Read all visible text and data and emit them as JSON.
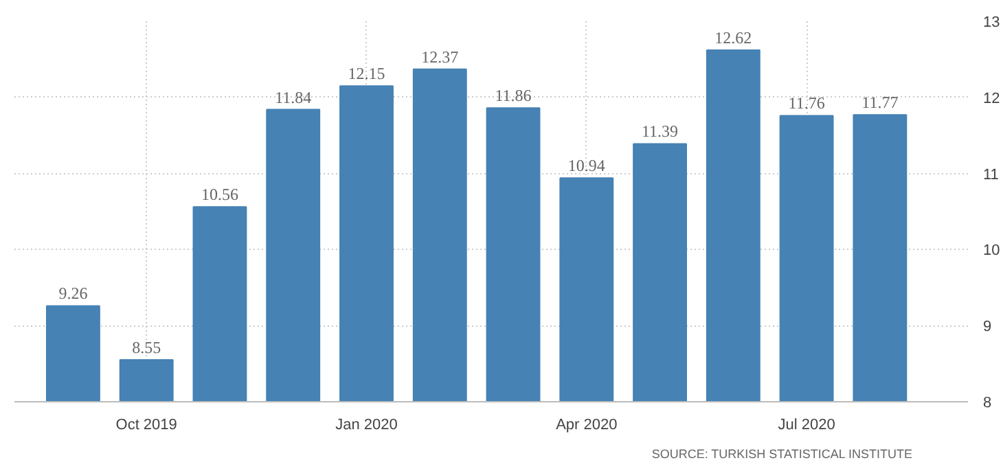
{
  "chart_data": {
    "type": "bar",
    "categories": [
      null,
      "Oct 2019",
      null,
      null,
      "Jan 2020",
      null,
      null,
      "Apr 2020",
      null,
      null,
      "Jul 2020",
      null
    ],
    "values": [
      9.26,
      8.55,
      10.56,
      11.84,
      12.15,
      12.37,
      11.86,
      10.94,
      11.39,
      12.62,
      11.76,
      11.77
    ],
    "color": "#4682b4",
    "data_labels": true,
    "ylim": [
      8,
      13
    ],
    "yticks": [
      8,
      9,
      10,
      11,
      12,
      13
    ],
    "grid": true,
    "annotations": [
      "SOURCE: TURKISH STATISTICAL INSTITUTE"
    ]
  }
}
